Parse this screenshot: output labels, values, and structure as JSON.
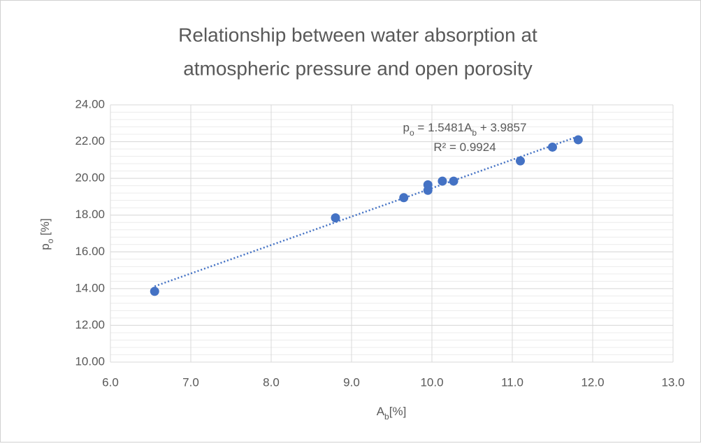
{
  "chart_data": {
    "type": "scatter",
    "title": [
      "Relationship between water absorption at",
      "atmospheric pressure and open porosity"
    ],
    "x_label": [
      "A",
      "b",
      "[%]"
    ],
    "y_label": [
      "p",
      "o",
      " [%]"
    ],
    "xlim": [
      6,
      13
    ],
    "xticks": [
      {
        "value": 6,
        "label": "6.0"
      },
      {
        "value": 7,
        "label": "7.0"
      },
      {
        "value": 8,
        "label": "8.0"
      },
      {
        "value": 9,
        "label": "9.0"
      },
      {
        "value": 10,
        "label": "10.0"
      },
      {
        "value": 11,
        "label": "11.0"
      },
      {
        "value": 12,
        "label": "12.0"
      },
      {
        "value": 13,
        "label": "13.0"
      }
    ],
    "ylim": [
      10,
      24
    ],
    "yticks": [
      {
        "value": 10,
        "label": "10.00"
      },
      {
        "value": 12,
        "label": "12.00"
      },
      {
        "value": 14,
        "label": "14.00"
      },
      {
        "value": 16,
        "label": "16.00"
      },
      {
        "value": 18,
        "label": "18.00"
      },
      {
        "value": 20,
        "label": "20.00"
      },
      {
        "value": 22,
        "label": "22.00"
      },
      {
        "value": 24,
        "label": "24.00"
      }
    ],
    "y_minor_step": 0.4,
    "grid": true,
    "color": "#4472c4",
    "x": [
      6.55,
      8.8,
      9.65,
      9.95,
      9.95,
      10.13,
      10.27,
      11.1,
      11.5,
      11.82
    ],
    "values": [
      13.85,
      17.85,
      18.95,
      19.35,
      19.65,
      19.85,
      19.85,
      20.95,
      21.7,
      22.1
    ],
    "trendline": {
      "slope": 1.5481,
      "intercept": 3.9857,
      "r_squared": 0.9924,
      "equation_parts": [
        "p",
        "o",
        " = ",
        "A",
        "b",
        " + "
      ],
      "r_squared_label": "R² = "
    }
  }
}
